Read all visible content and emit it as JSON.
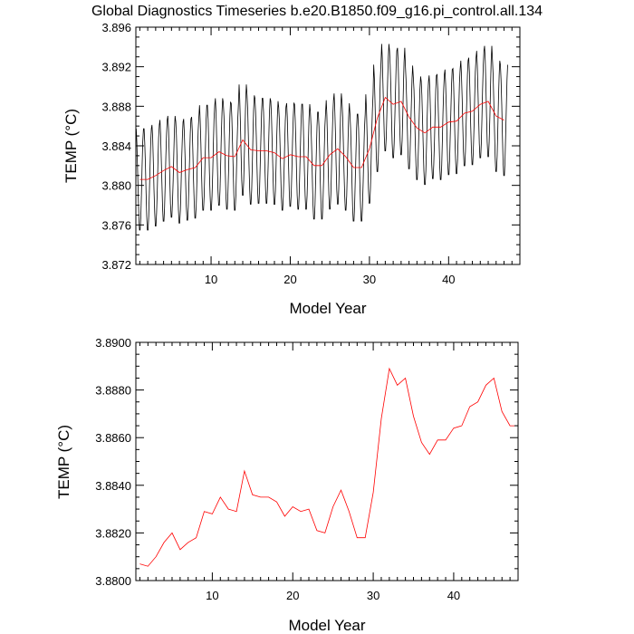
{
  "title": "Global Diagnostics Timeseries b.e20.B1850.f09_g16.pi_control.all.134",
  "chart_data": [
    {
      "type": "line",
      "xlabel": "Model Year",
      "ylabel": "TEMP (°C)",
      "xlim": [
        0.5,
        49.0
      ],
      "ylim": [
        3.872,
        3.896
      ],
      "xticks": [
        "10",
        "20",
        "30",
        "40"
      ],
      "xtick_values": [
        10,
        20,
        30,
        40
      ],
      "yticks": [
        "3.872",
        "3.876",
        "3.880",
        "3.884",
        "3.888",
        "3.892",
        "3.896"
      ],
      "ytick_values": [
        3.872,
        3.876,
        3.88,
        3.884,
        3.888,
        3.892,
        3.896
      ],
      "series": [
        {
          "kind": "monthly",
          "color": "#000000",
          "x_start": 0.5417,
          "x_step": 0.08333,
          "annual_means": [
            3.8806,
            3.8806,
            3.881,
            3.8815,
            3.8819,
            3.8813,
            3.8816,
            3.8818,
            3.8828,
            3.8828,
            3.8834,
            3.883,
            3.8829,
            3.8846,
            3.8836,
            3.8835,
            3.8835,
            3.8833,
            3.8827,
            3.8831,
            3.8829,
            3.8829,
            3.882,
            3.882,
            3.8831,
            3.8837,
            3.8829,
            3.8818,
            3.8818,
            3.8837,
            3.8868,
            3.8889,
            3.8882,
            3.8885,
            3.8869,
            3.8858,
            3.8853,
            3.8859,
            3.8859,
            3.8864,
            3.8865,
            3.8873,
            3.8875,
            3.8882,
            3.8885,
            3.887,
            3.8866
          ],
          "seasonal_amplitude": [
            5.3,
            5.3,
            5.3,
            5.3,
            5.3,
            5.3,
            5.3,
            5.3,
            5.5,
            5.5,
            5.6,
            5.6,
            5.6,
            5.8,
            5.7,
            5.5,
            5.5,
            5.4,
            5.4,
            5.4,
            5.5,
            5.5,
            5.6,
            5.6,
            5.7,
            5.8,
            5.6,
            5.6,
            5.6,
            5.7,
            5.6,
            5.6,
            5.6,
            5.6,
            5.4,
            5.4,
            5.4,
            5.4,
            5.5,
            5.5,
            5.5,
            5.5,
            5.6,
            5.6,
            5.8,
            5.8,
            5.8
          ]
        },
        {
          "kind": "annual",
          "color": "#ff0000",
          "x": [
            1,
            2,
            3,
            4,
            5,
            6,
            7,
            8,
            9,
            10,
            11,
            12,
            13,
            14,
            15,
            16,
            17,
            18,
            19,
            20,
            21,
            22,
            23,
            24,
            25,
            26,
            27,
            28,
            29,
            30,
            31,
            32,
            33,
            34,
            35,
            36,
            37,
            38,
            39,
            40,
            41,
            42,
            43,
            44,
            45,
            46,
            47
          ],
          "y": [
            3.8806,
            3.8806,
            3.881,
            3.8815,
            3.8819,
            3.8813,
            3.8816,
            3.8818,
            3.8828,
            3.8828,
            3.8834,
            3.883,
            3.8829,
            3.8846,
            3.8836,
            3.8835,
            3.8835,
            3.8833,
            3.8827,
            3.8831,
            3.8829,
            3.8829,
            3.882,
            3.882,
            3.8831,
            3.8837,
            3.8829,
            3.8818,
            3.8818,
            3.8837,
            3.8868,
            3.8889,
            3.8882,
            3.8885,
            3.8869,
            3.8858,
            3.8853,
            3.8859,
            3.8859,
            3.8864,
            3.8865,
            3.8873,
            3.8875,
            3.8882,
            3.8885,
            3.887,
            3.8866
          ]
        }
      ]
    },
    {
      "type": "line",
      "xlabel": "Model Year",
      "ylabel": "TEMP (°C)",
      "xlim": [
        0.5,
        48.0
      ],
      "ylim": [
        3.88,
        3.89
      ],
      "xticks": [
        "10",
        "20",
        "30",
        "40"
      ],
      "xtick_values": [
        10,
        20,
        30,
        40
      ],
      "yticks": [
        "3.8800",
        "3.8820",
        "3.8840",
        "3.8860",
        "3.8880",
        "3.8900"
      ],
      "ytick_values": [
        3.88,
        3.882,
        3.884,
        3.886,
        3.888,
        3.89
      ],
      "series": [
        {
          "kind": "annual",
          "color": "#ff0000",
          "x": [
            1,
            2,
            3,
            4,
            5,
            6,
            7,
            8,
            9,
            10,
            11,
            12,
            13,
            14,
            15,
            16,
            17,
            18,
            19,
            20,
            21,
            22,
            23,
            24,
            25,
            26,
            27,
            28,
            29,
            30,
            31,
            32,
            33,
            34,
            35,
            36,
            37,
            38,
            39,
            40,
            41,
            42,
            43,
            44,
            45,
            46,
            47,
            48
          ],
          "y": [
            3.8807,
            3.8806,
            3.881,
            3.8816,
            3.882,
            3.8813,
            3.8816,
            3.8818,
            3.8829,
            3.8828,
            3.8835,
            3.883,
            3.8829,
            3.8846,
            3.8836,
            3.8835,
            3.8835,
            3.8833,
            3.8827,
            3.8831,
            3.8829,
            3.883,
            3.8821,
            3.882,
            3.8831,
            3.8838,
            3.8829,
            3.8818,
            3.8818,
            3.8837,
            3.8868,
            3.8889,
            3.8882,
            3.8885,
            3.8869,
            3.8858,
            3.8853,
            3.8859,
            3.8859,
            3.8864,
            3.8865,
            3.8873,
            3.8875,
            3.8882,
            3.8885,
            3.8871,
            3.8865,
            3.8865
          ]
        }
      ]
    }
  ]
}
